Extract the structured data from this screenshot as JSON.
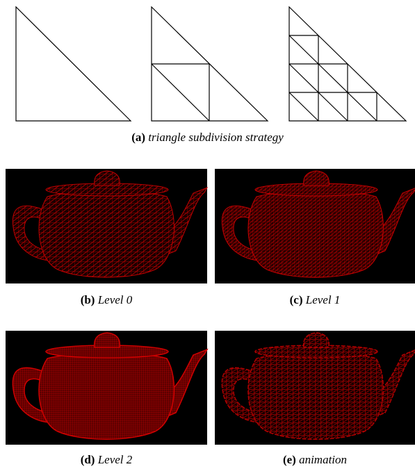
{
  "figure": {
    "subfigures": [
      {
        "label": "(a)",
        "caption": "triangle subdivision strategy"
      },
      {
        "label": "(b)",
        "caption": "Level 0"
      },
      {
        "label": "(c)",
        "caption": "Level 1"
      },
      {
        "label": "(d)",
        "caption": "Level 2"
      },
      {
        "label": "(e)",
        "caption": "animation"
      }
    ]
  }
}
